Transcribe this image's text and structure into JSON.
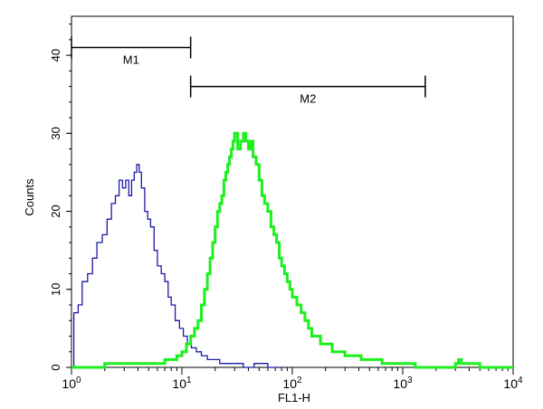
{
  "chart_data": {
    "type": "line",
    "title": "",
    "xlabel": "FL1-H",
    "ylabel": "Counts",
    "x_scale": "log",
    "xlim": [
      1,
      10000
    ],
    "ylim": [
      0,
      45
    ],
    "x_ticks": [
      {
        "value": 1,
        "base": "10",
        "exp": "0"
      },
      {
        "value": 10,
        "base": "10",
        "exp": "1"
      },
      {
        "value": 100,
        "base": "10",
        "exp": "2"
      },
      {
        "value": 1000,
        "base": "10",
        "exp": "3"
      },
      {
        "value": 10000,
        "base": "10",
        "exp": "4"
      }
    ],
    "y_ticks": [
      0,
      10,
      20,
      30,
      40
    ],
    "grid": false,
    "series": [
      {
        "color": "#1a1aa8",
        "x": [
          1.0,
          1.05,
          1.15,
          1.25,
          1.4,
          1.55,
          1.7,
          1.9,
          2.1,
          2.3,
          2.5,
          2.7,
          2.9,
          3.1,
          3.3,
          3.5,
          3.7,
          3.9,
          4.1,
          4.3,
          4.6,
          4.9,
          5.2,
          5.6,
          6.0,
          6.5,
          7.0,
          7.5,
          8.0,
          8.7,
          9.5,
          10.3,
          11.2,
          12.2,
          13.5,
          15,
          17,
          19,
          22,
          26,
          30,
          36,
          45,
          60,
          80
        ],
        "values": [
          0,
          7,
          8,
          11,
          12,
          14,
          16,
          17,
          19,
          21,
          22,
          24,
          23,
          24,
          22,
          24,
          25,
          26,
          25,
          23,
          20,
          19,
          18,
          15,
          13,
          12,
          11,
          9,
          8,
          6,
          5,
          4,
          3,
          2.5,
          2,
          1.5,
          1,
          1,
          0.5,
          0.5,
          0.5,
          0,
          0.5,
          0,
          0
        ]
      },
      {
        "color": "#1eef1e",
        "x": [
          1,
          2,
          3,
          5,
          7,
          9,
          10,
          11,
          12,
          13,
          14,
          15,
          16,
          17,
          18,
          19,
          20,
          21,
          22,
          23,
          24,
          25,
          26,
          27,
          28,
          29,
          30,
          32,
          34,
          36,
          38,
          40,
          42,
          44,
          47,
          50,
          53,
          56,
          60,
          64,
          68,
          72,
          76,
          80,
          85,
          90,
          95,
          100,
          110,
          120,
          130,
          140,
          150,
          165,
          180,
          200,
          230,
          260,
          300,
          350,
          420,
          500,
          650,
          800,
          1000,
          1300,
          1700,
          2200,
          3000,
          3200,
          3400,
          5000,
          10000
        ],
        "values": [
          0,
          0.5,
          0.5,
          0.5,
          1,
          1.5,
          2,
          3,
          4,
          5,
          6,
          8,
          10,
          12,
          14,
          16,
          18,
          20,
          21,
          22,
          24,
          25,
          26,
          27,
          28,
          29,
          30,
          28,
          29,
          30,
          29,
          28,
          29,
          27,
          26,
          24,
          22,
          21,
          20,
          18,
          17,
          16,
          14,
          13,
          12,
          11,
          10,
          9,
          8,
          7,
          6,
          5,
          4,
          4,
          3,
          3,
          2,
          2,
          1.5,
          1.5,
          1,
          1,
          0.5,
          0.5,
          0.5,
          0,
          0,
          0,
          0.5,
          1,
          0.5,
          0,
          0
        ]
      }
    ],
    "markers": [
      {
        "label": "M1",
        "x_start": 1.0,
        "x_end": 12,
        "y": 41
      },
      {
        "label": "M2",
        "x_start": 12,
        "x_end": 1600,
        "y": 36
      }
    ]
  }
}
